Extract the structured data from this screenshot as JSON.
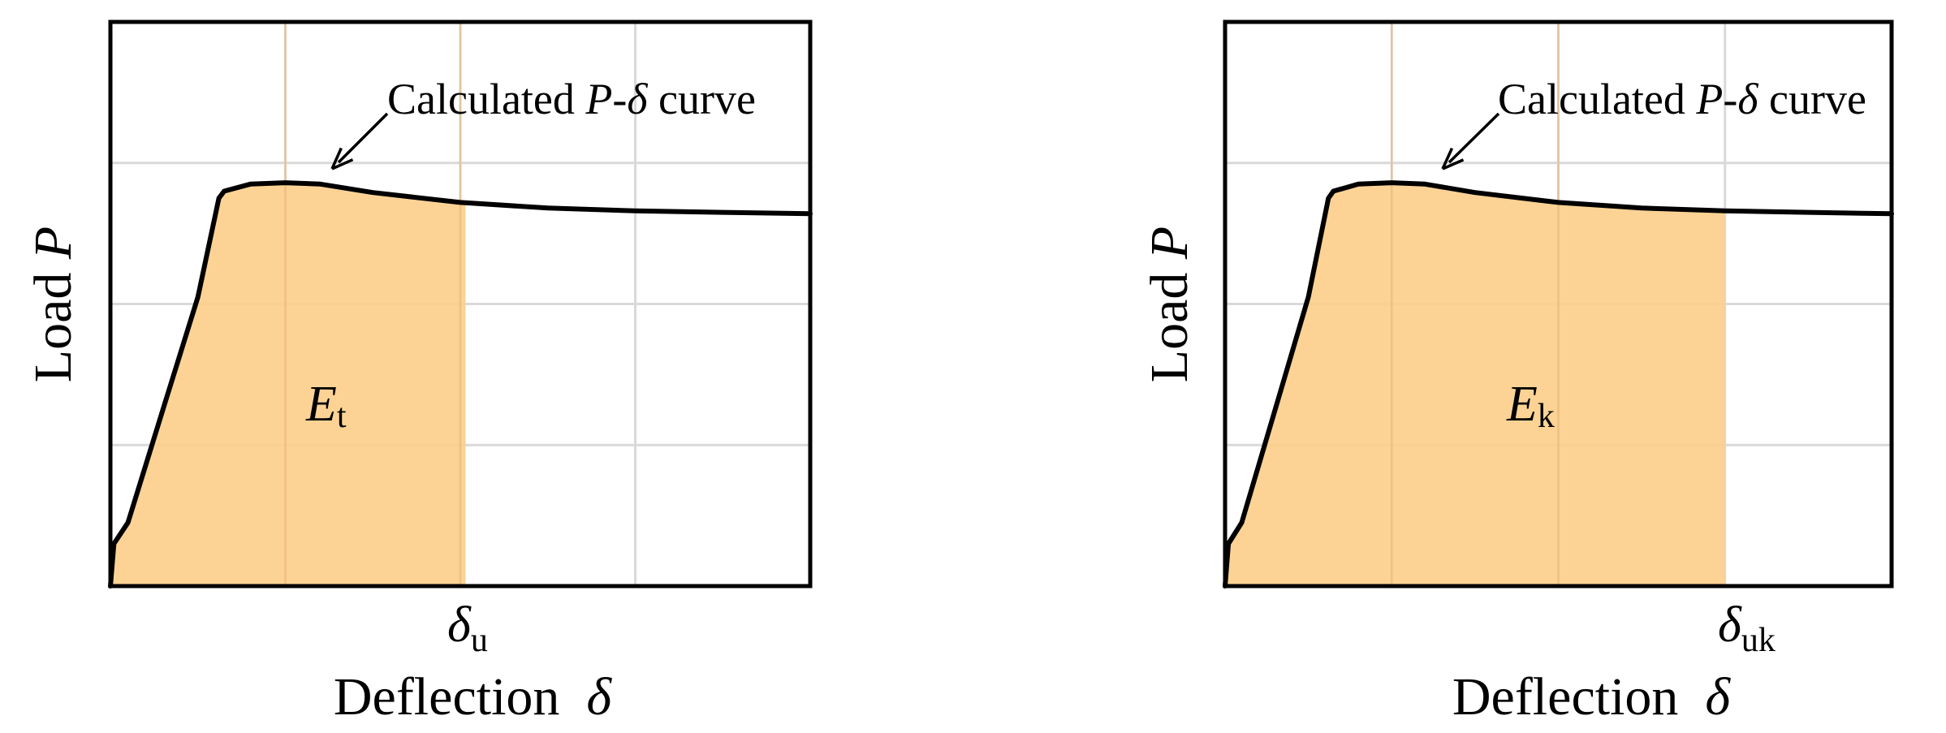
{
  "figure": {
    "panels": [
      {
        "ylabel_text": "Load ",
        "ylabel_var": "P",
        "xlabel_text": "Deflection ",
        "xlabel_var": "δ",
        "annotation_text": "Calculated ",
        "annotation_var1": "P",
        "annotation_dash": "-",
        "annotation_var2": "δ",
        "annotation_tail": " curve",
        "area_label_main": "E",
        "area_label_sub": "t",
        "marker_main": "δ",
        "marker_sub": "u"
      },
      {
        "ylabel_text": "Load ",
        "ylabel_var": "P",
        "xlabel_text": "Deflection ",
        "xlabel_var": "δ",
        "annotation_text": "Calculated ",
        "annotation_var1": "P",
        "annotation_dash": "-",
        "annotation_var2": "δ",
        "annotation_tail": " curve",
        "area_label_main": "E",
        "area_label_sub": "k",
        "marker_main": "δ",
        "marker_sub": "uk"
      }
    ]
  },
  "chart_data": [
    {
      "type": "area",
      "xlim": [
        0,
        4
      ],
      "ylim": [
        0,
        4
      ],
      "grid": true,
      "curve": {
        "x": [
          0,
          0.02,
          0.1,
          0.3,
          0.5,
          0.62,
          0.65,
          0.8,
          1.0,
          1.2,
          1.5,
          2.0,
          2.5,
          3.0,
          3.5,
          4.0
        ],
        "y": [
          0,
          0.3,
          0.45,
          1.25,
          2.05,
          2.75,
          2.8,
          2.85,
          2.86,
          2.85,
          2.79,
          2.72,
          2.68,
          2.66,
          2.65,
          2.64
        ]
      },
      "shaded_until_x": 2.03,
      "fill_color": "#fccf8c"
    },
    {
      "type": "area",
      "xlim": [
        0,
        4
      ],
      "ylim": [
        0,
        4
      ],
      "grid": true,
      "curve": {
        "x": [
          0,
          0.02,
          0.1,
          0.3,
          0.5,
          0.62,
          0.65,
          0.8,
          1.0,
          1.2,
          1.5,
          2.0,
          2.5,
          3.0,
          3.5,
          4.0
        ],
        "y": [
          0,
          0.3,
          0.45,
          1.25,
          2.05,
          2.75,
          2.8,
          2.85,
          2.86,
          2.85,
          2.79,
          2.72,
          2.68,
          2.66,
          2.65,
          2.64
        ]
      },
      "shaded_until_x": 3.0,
      "fill_color": "#fccf8c"
    }
  ]
}
